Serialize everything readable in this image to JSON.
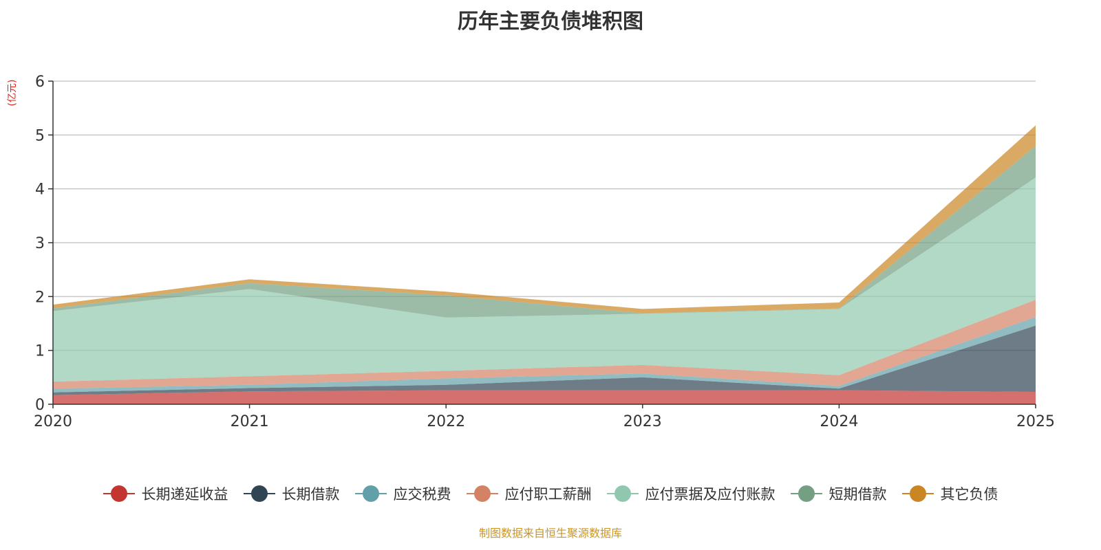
{
  "chart_data": {
    "type": "area",
    "stacked": true,
    "title": "历年主要负债堆积图",
    "ylabel": "(亿元)",
    "xlabel": "",
    "categories": [
      "2020",
      "2021",
      "2022",
      "2023",
      "2024",
      "2025"
    ],
    "ylim": [
      0,
      6
    ],
    "yticks": [
      "0",
      "1",
      "2",
      "3",
      "4",
      "5",
      "6"
    ],
    "grid": true,
    "legend_position": "bottom",
    "series": [
      {
        "name": "长期递延收益",
        "color": "#c23531",
        "values": [
          0.17,
          0.24,
          0.26,
          0.26,
          0.26,
          0.23
        ]
      },
      {
        "name": "长期借款",
        "color": "#2f4554",
        "values": [
          0.05,
          0.06,
          0.1,
          0.24,
          0.03,
          1.23
        ]
      },
      {
        "name": "应交税费",
        "color": "#61a0a8",
        "values": [
          0.07,
          0.06,
          0.12,
          0.07,
          0.05,
          0.16
        ]
      },
      {
        "name": "应付职工薪酬",
        "color": "#d48265",
        "values": [
          0.13,
          0.16,
          0.14,
          0.16,
          0.2,
          0.32
        ]
      },
      {
        "name": "应付票据及应付账款",
        "color": "#91c7ae",
        "values": [
          1.31,
          1.62,
          0.99,
          0.95,
          1.23,
          2.27
        ]
      },
      {
        "name": "短期借款",
        "color": "#749f83",
        "values": [
          0.05,
          0.11,
          0.41,
          0.01,
          0.01,
          0.59
        ]
      },
      {
        "name": "其它负债",
        "color": "#ca8622",
        "values": [
          0.07,
          0.07,
          0.07,
          0.08,
          0.11,
          0.38
        ]
      }
    ]
  },
  "footer": "制图数据来自恒生聚源数据库"
}
